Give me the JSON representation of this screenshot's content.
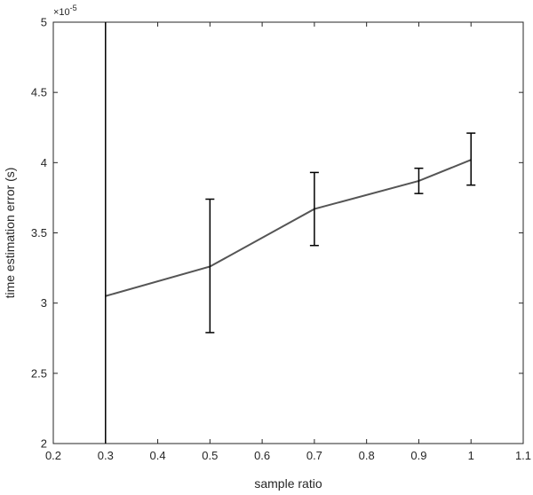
{
  "chart_data": {
    "type": "line",
    "xlabel": "sample ratio",
    "ylabel": "time estimation error (s)",
    "exponent_label": "×10^{-5}",
    "exponent_base": "×10",
    "exponent_power": "-5",
    "xlim": [
      0.2,
      1.1
    ],
    "ylim": [
      2,
      5
    ],
    "xticks": [
      "0.2",
      "0.3",
      "0.4",
      "0.5",
      "0.6",
      "0.7",
      "0.8",
      "0.9",
      "1",
      "1.1"
    ],
    "yticks": [
      "2",
      "2.5",
      "3",
      "3.5",
      "4",
      "4.5",
      "5"
    ],
    "grid": false,
    "legend": "none",
    "colors": {
      "line": "#555555",
      "errorbar": "#000000",
      "axis": "#262626"
    },
    "series": [
      {
        "x": [
          0.3,
          0.5,
          0.7,
          0.9,
          1.0
        ],
        "y": [
          3.05,
          3.26,
          3.67,
          3.87,
          4.02
        ],
        "err_low": [
          1.95,
          2.79,
          3.41,
          3.78,
          3.84
        ],
        "err_high": [
          5.0,
          3.74,
          3.93,
          3.96,
          4.21
        ]
      }
    ]
  }
}
